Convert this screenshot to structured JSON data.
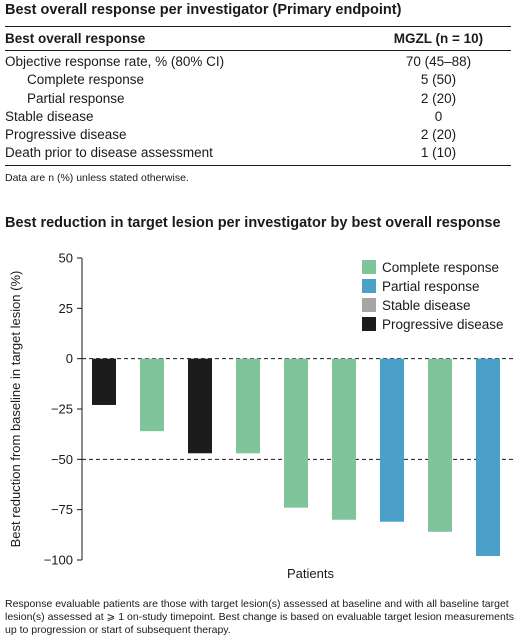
{
  "table_section": {
    "title": "Best overall response per investigator (Primary endpoint)",
    "header": {
      "label": "Best overall response",
      "value": "MGZL (n = 10)"
    },
    "rows": [
      {
        "label": "Objective response rate, % (80% CI)",
        "value": "70 (45–88)",
        "indent": false
      },
      {
        "label": "Complete response",
        "value": "5 (50)",
        "indent": true
      },
      {
        "label": "Partial response",
        "value": "2 (20)",
        "indent": true
      },
      {
        "label": "Stable disease",
        "value": "0",
        "indent": false
      },
      {
        "label": "Progressive disease",
        "value": "2 (20)",
        "indent": false
      },
      {
        "label": "Death prior to disease assessment",
        "value": "1 (10)",
        "indent": false
      }
    ],
    "footnote": "Data are n (%) unless stated otherwise."
  },
  "chart_section": {
    "title": "Best reduction in target lesion per investigator by best overall response",
    "bottom_note": "Response evaluable patients are those with target lesion(s) assessed at baseline and with all baseline target lesion(s) assessed at ⩾ 1 on-study timepoint. Best change is based on evaluable target lesion measurements up to progression or start of subsequent therapy."
  },
  "colors": {
    "Complete response": "#7fc49b",
    "Partial response": "#4aa0c9",
    "Stable disease": "#a6a6a6",
    "Progressive disease": "#1c1c1c"
  },
  "chart_data": {
    "type": "bar",
    "title": "Best reduction in target lesion per investigator by best overall response",
    "xlabel": "Patients",
    "ylabel": "Best reduction from baseline in target lesion (%)",
    "ylim": [
      -100,
      50
    ],
    "yticks": [
      50,
      25,
      0,
      -25,
      -50,
      -75,
      -100
    ],
    "reference_lines": [
      0,
      -50
    ],
    "legend": {
      "placement": "top-right",
      "entries": [
        "Complete response",
        "Partial response",
        "Stable disease",
        "Progressive disease"
      ]
    },
    "bars": [
      {
        "category": "Progressive disease",
        "value": -23
      },
      {
        "category": "Complete response",
        "value": -36
      },
      {
        "category": "Progressive disease",
        "value": -47
      },
      {
        "category": "Complete response",
        "value": -47
      },
      {
        "category": "Complete response",
        "value": -74
      },
      {
        "category": "Complete response",
        "value": -80
      },
      {
        "category": "Partial response",
        "value": -81
      },
      {
        "category": "Complete response",
        "value": -86
      },
      {
        "category": "Partial response",
        "value": -98
      }
    ]
  }
}
